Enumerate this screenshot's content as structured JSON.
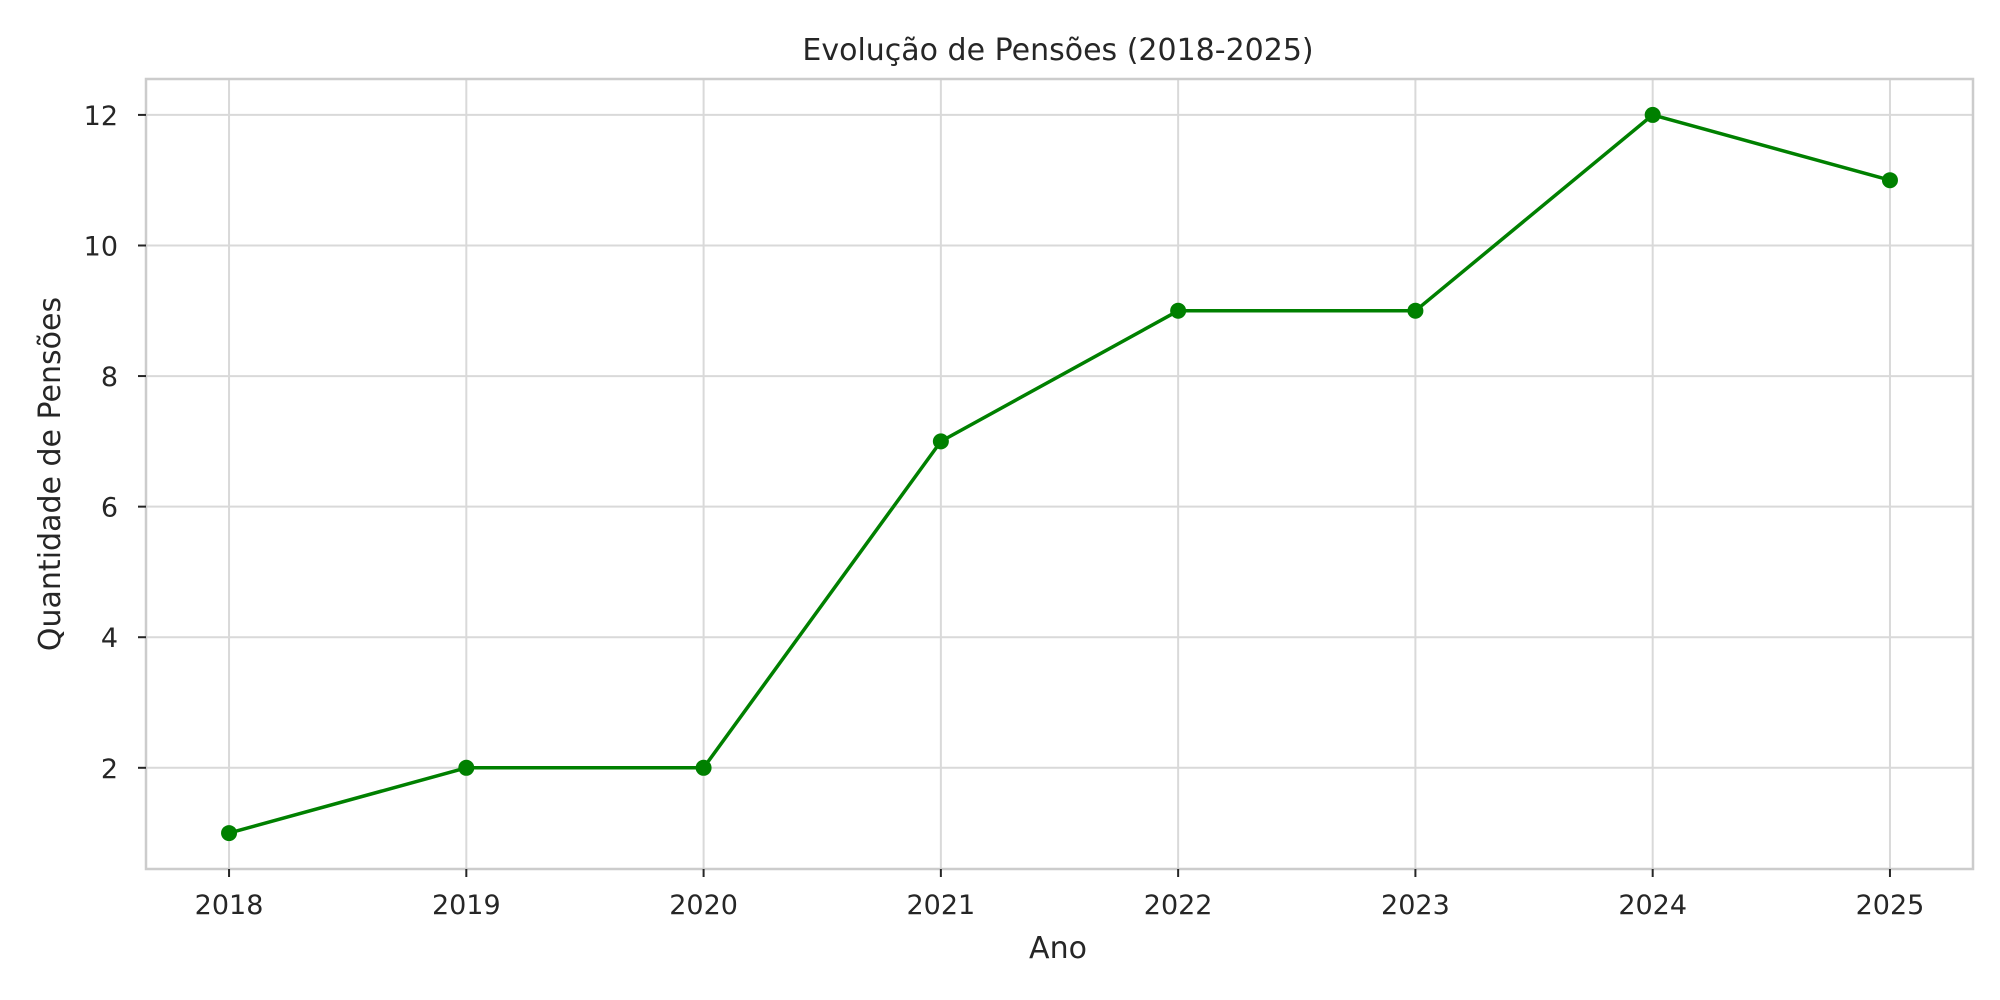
{
  "chart_data": {
    "type": "line",
    "title": "Evolução de Pensões (2018-2025)",
    "xlabel": "Ano",
    "ylabel": "Quantidade de Pensões",
    "x": [
      2018,
      2019,
      2020,
      2021,
      2022,
      2023,
      2024,
      2025
    ],
    "x_tick_labels": [
      "2018",
      "2019",
      "2020",
      "2021",
      "2022",
      "2023",
      "2024",
      "2025"
    ],
    "y_ticks": [
      2,
      4,
      6,
      8,
      10,
      12
    ],
    "y_tick_labels": [
      "2",
      "4",
      "6",
      "8",
      "10",
      "12"
    ],
    "xlim": [
      2017.65,
      2025.35
    ],
    "ylim": [
      0.45,
      12.55
    ],
    "grid": true,
    "legend": "none",
    "series": [
      {
        "values": [
          1,
          2,
          2,
          7,
          9,
          9,
          12,
          11
        ],
        "color": "#008000",
        "marker": "circle"
      }
    ],
    "colors": {
      "line": "#008000",
      "grid": "#d9d9d9",
      "frame": "#cccccc",
      "text": "#262626",
      "background": "#ffffff"
    }
  }
}
